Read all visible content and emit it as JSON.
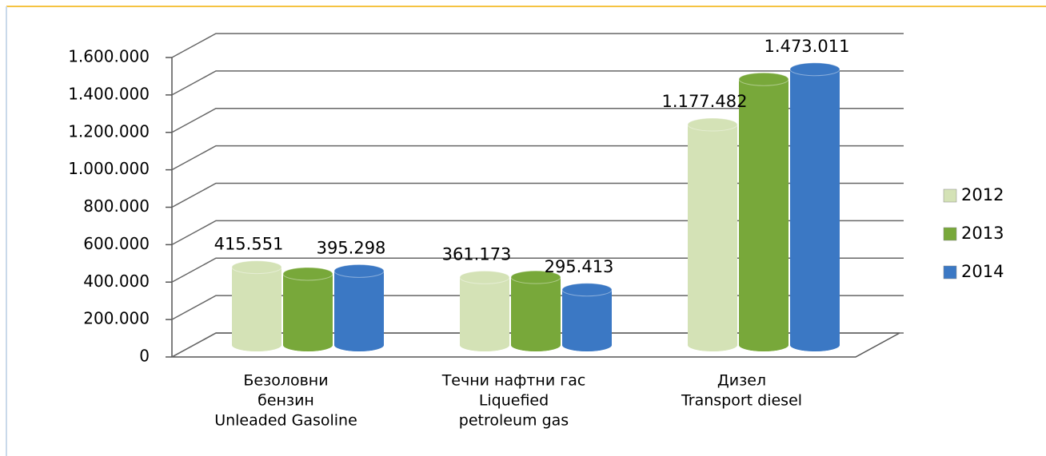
{
  "chart_data": {
    "type": "bar3d",
    "categories": [
      [
        "Безоловни",
        "бензин",
        "Unleaded Gasoline"
      ],
      [
        "Течни нафтни гас",
        "Liquefied",
        "petroleum gas"
      ],
      [
        "Дизел",
        "Transport diesel"
      ]
    ],
    "series": [
      {
        "name": "2012",
        "color": "#d4e2b6",
        "values": [
          415551,
          361173,
          1177482
        ],
        "value_labels": [
          "415.551",
          "361.173",
          "1.177.482"
        ]
      },
      {
        "name": "2013",
        "color": "#78a83a",
        "values": [
          380000,
          362000,
          1420000
        ],
        "value_labels": [
          null,
          null,
          null
        ]
      },
      {
        "name": "2014",
        "color": "#3b78c4",
        "values": [
          395298,
          295413,
          1473011
        ],
        "value_labels": [
          "395.298",
          "295.413",
          "1.473.011"
        ]
      }
    ],
    "ylim": [
      0,
      1600000
    ],
    "yticks": [
      {
        "value": 0,
        "label": "0"
      },
      {
        "value": 200000,
        "label": "200.000"
      },
      {
        "value": 400000,
        "label": "400.000"
      },
      {
        "value": 600000,
        "label": "600.000"
      },
      {
        "value": 800000,
        "label": "800.000"
      },
      {
        "value": 1000000,
        "label": "1.000.000"
      },
      {
        "value": 1200000,
        "label": "1.200.000"
      },
      {
        "value": 1400000,
        "label": "1.400.000"
      },
      {
        "value": 1600000,
        "label": "1.600.000"
      }
    ],
    "grid": true,
    "legend": "right"
  }
}
